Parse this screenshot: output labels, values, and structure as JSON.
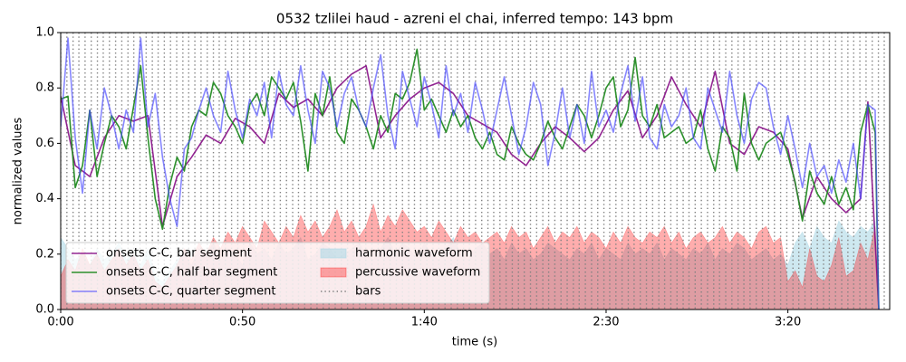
{
  "chart_data": {
    "type": "line",
    "title": "0532 tzlilei haud - azreni el chai, inferred tempo: 143 bpm",
    "xlabel": "time (s)",
    "ylabel": "normalized values",
    "xlim": [
      0,
      228
    ],
    "ylim": [
      0,
      1
    ],
    "xticks": [
      {
        "value": 0,
        "label": "0:00"
      },
      {
        "value": 50,
        "label": "0:50"
      },
      {
        "value": 100,
        "label": "1:40"
      },
      {
        "value": 150,
        "label": "2:30"
      },
      {
        "value": 200,
        "label": "3:20"
      }
    ],
    "yticks": [
      {
        "value": 0,
        "label": "0.0"
      },
      0.2,
      0.4,
      0.6,
      0.8,
      {
        "value": 1,
        "label": "1.0"
      }
    ],
    "legend": "lower left",
    "legend_columns": 2,
    "x": [
      0,
      2,
      4,
      6,
      8,
      10,
      12,
      14,
      16,
      18,
      20,
      22,
      24,
      26,
      28,
      30,
      32,
      34,
      36,
      38,
      40,
      42,
      44,
      46,
      48,
      50,
      52,
      54,
      56,
      58,
      60,
      62,
      64,
      66,
      68,
      70,
      72,
      74,
      76,
      78,
      80,
      82,
      84,
      86,
      88,
      90,
      92,
      94,
      96,
      98,
      100,
      102,
      104,
      106,
      108,
      110,
      112,
      114,
      116,
      118,
      120,
      122,
      124,
      126,
      128,
      130,
      132,
      134,
      136,
      138,
      140,
      142,
      144,
      146,
      148,
      150,
      152,
      154,
      156,
      158,
      160,
      162,
      164,
      166,
      168,
      170,
      172,
      174,
      176,
      178,
      180,
      182,
      184,
      186,
      188,
      190,
      192,
      194,
      196,
      198,
      200,
      202,
      204,
      206,
      208,
      210,
      212,
      214,
      216,
      218,
      220,
      222,
      224,
      225
    ],
    "series": [
      {
        "name": "onsets C-C, bar segment",
        "kind": "line",
        "color": "#800080",
        "alpha": 0.85,
        "x": [
          0,
          4,
          8,
          12,
          16,
          20,
          24,
          28,
          32,
          36,
          40,
          44,
          48,
          52,
          56,
          60,
          64,
          68,
          72,
          76,
          80,
          84,
          88,
          92,
          96,
          100,
          104,
          108,
          112,
          116,
          120,
          124,
          128,
          132,
          136,
          140,
          144,
          148,
          152,
          156,
          160,
          164,
          168,
          172,
          176,
          180,
          184,
          188,
          192,
          196,
          200,
          204,
          208,
          212,
          216,
          220,
          222,
          225
        ],
        "values": [
          0.77,
          0.52,
          0.48,
          0.62,
          0.7,
          0.68,
          0.7,
          0.3,
          0.48,
          0.55,
          0.63,
          0.6,
          0.69,
          0.66,
          0.6,
          0.78,
          0.73,
          0.76,
          0.7,
          0.8,
          0.85,
          0.88,
          0.62,
          0.7,
          0.76,
          0.8,
          0.82,
          0.78,
          0.7,
          0.67,
          0.64,
          0.56,
          0.52,
          0.6,
          0.66,
          0.62,
          0.57,
          0.62,
          0.72,
          0.79,
          0.62,
          0.7,
          0.84,
          0.74,
          0.66,
          0.86,
          0.6,
          0.56,
          0.66,
          0.64,
          0.58,
          0.33,
          0.48,
          0.4,
          0.35,
          0.4,
          0.75,
          0
        ]
      },
      {
        "name": "onsets C-C, half bar segment",
        "kind": "line",
        "color": "#228b22",
        "alpha": 0.95,
        "values": [
          0.76,
          0.77,
          0.44,
          0.52,
          0.72,
          0.48,
          0.6,
          0.7,
          0.66,
          0.58,
          0.73,
          0.88,
          0.62,
          0.4,
          0.29,
          0.45,
          0.55,
          0.5,
          0.66,
          0.72,
          0.7,
          0.82,
          0.78,
          0.7,
          0.66,
          0.6,
          0.74,
          0.78,
          0.7,
          0.84,
          0.8,
          0.76,
          0.82,
          0.68,
          0.5,
          0.78,
          0.7,
          0.84,
          0.64,
          0.6,
          0.76,
          0.72,
          0.66,
          0.58,
          0.7,
          0.64,
          0.78,
          0.76,
          0.82,
          0.94,
          0.72,
          0.76,
          0.7,
          0.64,
          0.72,
          0.66,
          0.7,
          0.62,
          0.58,
          0.64,
          0.56,
          0.54,
          0.66,
          0.6,
          0.56,
          0.54,
          0.6,
          0.68,
          0.62,
          0.58,
          0.66,
          0.74,
          0.7,
          0.62,
          0.7,
          0.8,
          0.84,
          0.66,
          0.72,
          0.91,
          0.7,
          0.66,
          0.74,
          0.62,
          0.64,
          0.66,
          0.6,
          0.62,
          0.72,
          0.58,
          0.5,
          0.66,
          0.62,
          0.5,
          0.78,
          0.6,
          0.54,
          0.6,
          0.62,
          0.64,
          0.56,
          0.46,
          0.32,
          0.5,
          0.42,
          0.38,
          0.48,
          0.38,
          0.44,
          0.36,
          0.64,
          0.74,
          0.64,
          0
        ]
      },
      {
        "name": "onsets C-C, quarter segment",
        "kind": "line",
        "color": "#4646ff",
        "alpha": 0.65,
        "values": [
          0.66,
          0.98,
          0.62,
          0.42,
          0.72,
          0.58,
          0.8,
          0.7,
          0.58,
          0.72,
          0.64,
          0.98,
          0.66,
          0.78,
          0.55,
          0.4,
          0.3,
          0.58,
          0.62,
          0.72,
          0.8,
          0.7,
          0.64,
          0.86,
          0.72,
          0.62,
          0.76,
          0.7,
          0.82,
          0.62,
          0.86,
          0.74,
          0.7,
          0.88,
          0.72,
          0.6,
          0.86,
          0.8,
          0.66,
          0.78,
          0.84,
          0.72,
          0.66,
          0.8,
          0.92,
          0.7,
          0.58,
          0.86,
          0.76,
          0.66,
          0.84,
          0.74,
          0.62,
          0.88,
          0.7,
          0.78,
          0.64,
          0.82,
          0.72,
          0.6,
          0.72,
          0.84,
          0.7,
          0.56,
          0.66,
          0.82,
          0.74,
          0.52,
          0.64,
          0.8,
          0.62,
          0.74,
          0.6,
          0.86,
          0.66,
          0.72,
          0.64,
          0.78,
          0.88,
          0.68,
          0.84,
          0.62,
          0.58,
          0.74,
          0.66,
          0.7,
          0.8,
          0.62,
          0.58,
          0.8,
          0.72,
          0.64,
          0.86,
          0.7,
          0.6,
          0.76,
          0.82,
          0.8,
          0.66,
          0.56,
          0.7,
          0.58,
          0.44,
          0.6,
          0.48,
          0.52,
          0.42,
          0.54,
          0.46,
          0.6,
          0.4,
          0.74,
          0.72,
          0
        ]
      },
      {
        "name": "harmonic waveform",
        "kind": "area",
        "color": "#add8e6",
        "alpha": 0.6,
        "values": [
          0.26,
          0.22,
          0.18,
          0.2,
          0.16,
          0.22,
          0.18,
          0.2,
          0.24,
          0.18,
          0.2,
          0.16,
          0.22,
          0.12,
          0.1,
          0.14,
          0.18,
          0.2,
          0.16,
          0.22,
          0.2,
          0.24,
          0.18,
          0.22,
          0.2,
          0.16,
          0.24,
          0.2,
          0.22,
          0.18,
          0.24,
          0.2,
          0.22,
          0.26,
          0.18,
          0.2,
          0.24,
          0.22,
          0.18,
          0.2,
          0.22,
          0.24,
          0.2,
          0.18,
          0.22,
          0.26,
          0.2,
          0.24,
          0.22,
          0.18,
          0.24,
          0.2,
          0.18,
          0.22,
          0.26,
          0.2,
          0.18,
          0.22,
          0.24,
          0.2,
          0.22,
          0.18,
          0.24,
          0.2,
          0.22,
          0.18,
          0.2,
          0.24,
          0.22,
          0.2,
          0.18,
          0.22,
          0.2,
          0.24,
          0.18,
          0.22,
          0.2,
          0.18,
          0.24,
          0.2,
          0.22,
          0.2,
          0.24,
          0.18,
          0.22,
          0.2,
          0.18,
          0.22,
          0.2,
          0.24,
          0.18,
          0.22,
          0.2,
          0.24,
          0.22,
          0.18,
          0.2,
          0.22,
          0.18,
          0.2,
          0.16,
          0.24,
          0.28,
          0.22,
          0.3,
          0.26,
          0.24,
          0.32,
          0.28,
          0.26,
          0.3,
          0.28,
          0.32,
          0
        ]
      },
      {
        "name": "percussive waveform",
        "kind": "area",
        "color": "#ff0000",
        "alpha": 0.32,
        "values": [
          0.12,
          0.18,
          0.14,
          0.22,
          0.16,
          0.2,
          0.14,
          0.18,
          0.22,
          0.16,
          0.2,
          0.14,
          0.18,
          0.1,
          0.08,
          0.12,
          0.16,
          0.22,
          0.18,
          0.24,
          0.2,
          0.26,
          0.22,
          0.28,
          0.24,
          0.3,
          0.26,
          0.22,
          0.32,
          0.28,
          0.24,
          0.3,
          0.26,
          0.34,
          0.28,
          0.32,
          0.26,
          0.3,
          0.36,
          0.28,
          0.32,
          0.26,
          0.3,
          0.38,
          0.28,
          0.34,
          0.3,
          0.36,
          0.32,
          0.28,
          0.3,
          0.26,
          0.32,
          0.28,
          0.24,
          0.3,
          0.26,
          0.28,
          0.24,
          0.26,
          0.28,
          0.24,
          0.3,
          0.26,
          0.28,
          0.22,
          0.26,
          0.3,
          0.24,
          0.28,
          0.26,
          0.3,
          0.24,
          0.28,
          0.26,
          0.22,
          0.28,
          0.24,
          0.3,
          0.26,
          0.24,
          0.28,
          0.26,
          0.3,
          0.24,
          0.28,
          0.22,
          0.26,
          0.28,
          0.24,
          0.26,
          0.3,
          0.24,
          0.28,
          0.26,
          0.22,
          0.28,
          0.3,
          0.24,
          0.26,
          0.1,
          0.14,
          0.08,
          0.22,
          0.12,
          0.1,
          0.16,
          0.26,
          0.12,
          0.14,
          0.24,
          0.18,
          0.3,
          0
        ]
      },
      {
        "name": "bars",
        "kind": "vlines",
        "color": "#808080",
        "x": [
          0,
          1.7,
          3.4,
          5.0,
          6.7,
          8.4,
          10.1,
          11.7,
          13.4,
          15.1,
          16.8,
          18.5,
          20.1,
          21.8,
          23.5,
          25.2,
          26.8,
          28.5,
          30.2,
          31.9,
          33.6,
          35.2,
          36.9,
          38.6,
          40.3,
          42.0,
          43.6,
          45.3,
          47.0,
          48.7,
          50.3,
          52.0,
          53.7,
          55.4,
          57.1,
          58.7,
          60.4,
          62.1,
          63.8,
          65.4,
          67.1,
          68.8,
          70.5,
          72.2,
          73.8,
          75.5,
          77.2,
          78.9,
          80.5,
          82.2,
          83.9,
          85.6,
          87.3,
          88.9,
          90.6,
          92.3,
          94.0,
          95.7,
          97.3,
          99.0,
          100.7,
          102.4,
          104.0,
          105.7,
          107.4,
          109.1,
          110.8,
          112.4,
          114.1,
          115.8,
          117.5,
          119.1,
          120.8,
          122.5,
          124.2,
          125.9,
          127.5,
          129.2,
          130.9,
          132.6,
          134.2,
          135.9,
          137.6,
          139.3,
          141.0,
          142.6,
          144.3,
          146.0,
          147.7,
          149.4,
          151.0,
          152.7,
          154.4,
          156.1,
          157.7,
          159.4,
          161.1,
          162.8,
          164.5,
          166.1,
          167.8,
          169.5,
          171.2,
          172.8,
          174.5,
          176.2,
          177.9,
          179.6,
          181.2,
          182.9,
          184.6,
          186.3,
          187.9,
          189.6,
          191.3,
          193.0,
          194.7,
          196.3,
          198.0,
          199.7,
          201.4,
          203.0,
          204.7,
          206.4,
          208.1,
          209.8,
          211.4,
          213.1,
          214.8,
          216.5,
          218.1,
          219.8,
          221.5,
          223.2,
          224.9,
          226.5
        ]
      }
    ]
  }
}
